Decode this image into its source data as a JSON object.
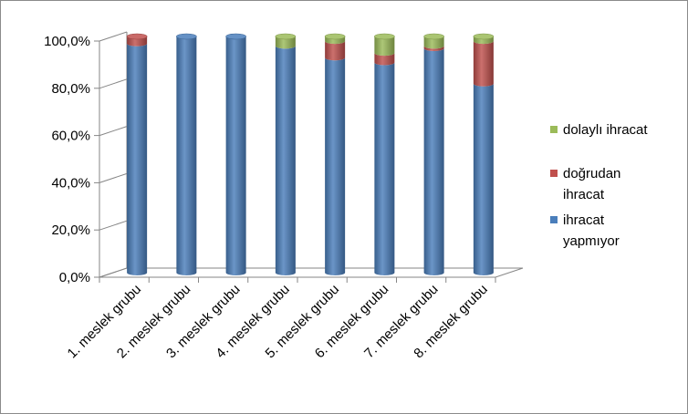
{
  "chart_data": {
    "type": "bar",
    "stacked": true,
    "percent": true,
    "style": "3d-cylinder",
    "categories": [
      "1. meslek grubu",
      "2. meslek grubu",
      "3. meslek grubu",
      "4. meslek grubu",
      "5. meslek grubu",
      "6. meslek grubu",
      "7. meslek grubu",
      "8. meslek grubu"
    ],
    "series": [
      {
        "name": "ihracat yapmıyor",
        "color": "#4a7ebb",
        "values": [
          97,
          100,
          100,
          96,
          91,
          89,
          95,
          80
        ]
      },
      {
        "name": "doğrudan ihracat",
        "color": "#c0504d",
        "values": [
          3,
          0,
          0,
          0,
          7,
          4,
          1,
          18
        ]
      },
      {
        "name": "dolaylı ihracat",
        "color": "#9bbb59",
        "values": [
          0,
          0,
          0,
          4,
          2,
          7,
          4,
          2
        ]
      }
    ],
    "legend_order": [
      "dolaylı ihracat",
      "doğrudan ihracat",
      "ihracat yapmıyor"
    ],
    "legend_lines": {
      "dolaylı ihracat": [
        "dolaylı ihracat"
      ],
      "doğrudan ihracat": [
        "doğrudan",
        "ihracat"
      ],
      "ihracat yapmıyor": [
        "ihracat",
        "yapmıyor"
      ]
    },
    "y_ticks": [
      "0,0%",
      "20,0%",
      "40,0%",
      "60,0%",
      "80,0%",
      "100,0%"
    ],
    "ylim": [
      0,
      100
    ],
    "legend_position": "right",
    "grid": false,
    "title": "",
    "xlabel": "",
    "ylabel": ""
  }
}
